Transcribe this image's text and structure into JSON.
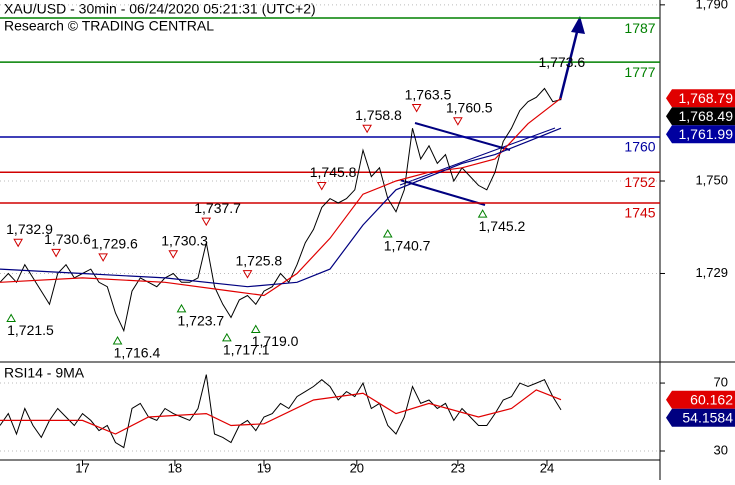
{
  "chart_data": [
    {
      "type": "line",
      "title": "XAU/USD - 30min - 06/24/2020 05:21:31 (UTC+2)",
      "subtitle": "Research © TRADING CENTRAL",
      "x": [
        0,
        2,
        4,
        6,
        8,
        10,
        12,
        14,
        16,
        18,
        20,
        22,
        24,
        26,
        28,
        30,
        32,
        34,
        36,
        38,
        40,
        42,
        44,
        46,
        48,
        50,
        52,
        54,
        56,
        58,
        60,
        62,
        64,
        66,
        68,
        70,
        72,
        74,
        76,
        78,
        80,
        82,
        84,
        86,
        88,
        90,
        92,
        94,
        96,
        98,
        100,
        102,
        104,
        106,
        108,
        110,
        112,
        114,
        116,
        118,
        120,
        122,
        124,
        126,
        128,
        130,
        132,
        134,
        136
      ],
      "xlim": [
        0,
        160
      ],
      "ylim": [
        1708.9,
        1791.1
      ],
      "yticks": [
        {
          "value": 1790,
          "label": "1,790"
        },
        {
          "value": 1750,
          "label": "1,750"
        },
        {
          "value": 1729,
          "label": "1,729"
        }
      ],
      "grid": true,
      "series": [
        {
          "color": "#000000",
          "values": [
            1727,
            1729,
            1727,
            1731,
            1728,
            1725,
            1722,
            1729,
            1731,
            1728,
            1729,
            1730,
            1727,
            1726,
            1720,
            1716,
            1725,
            1728,
            1727,
            1726,
            1728,
            1729,
            1727,
            1727,
            1728,
            1736,
            1726,
            1722,
            1719,
            1723,
            1724,
            1722,
            1725,
            1726,
            1729,
            1727,
            1731,
            1736,
            1739,
            1744,
            1746,
            1745,
            1746,
            1748,
            1757,
            1751,
            1753,
            1746,
            1743,
            1748,
            1762,
            1755,
            1758,
            1754,
            1756,
            1750,
            1753,
            1751,
            1749,
            1748,
            1752,
            1759,
            1762,
            1766,
            1768,
            1769,
            1771,
            1768,
            1768.5
          ]
        },
        {
          "color": "#e00000",
          "x": [
            0,
            20,
            40,
            56,
            64,
            72,
            80,
            88,
            96,
            104,
            112,
            120,
            128,
            136
          ],
          "values": [
            1727,
            1728,
            1727,
            1725,
            1724,
            1729,
            1737,
            1747,
            1750,
            1752,
            1753,
            1755,
            1763,
            1768.8
          ]
        },
        {
          "color": "#000080",
          "x": [
            0,
            20,
            40,
            60,
            72,
            80,
            88,
            96,
            104,
            112,
            120,
            128,
            136
          ],
          "values": [
            1730,
            1729,
            1728,
            1726,
            1727,
            1730,
            1740,
            1748,
            1751,
            1754,
            1756,
            1759,
            1762
          ]
        }
      ],
      "levels": [
        {
          "value": 1787,
          "color": "#008000"
        },
        {
          "value": 1777,
          "color": "#008000"
        },
        {
          "value": 1760,
          "color": "#0000a0"
        },
        {
          "value": 1752,
          "color": "#d00000"
        },
        {
          "value": 1745,
          "color": "#d00000"
        }
      ],
      "annotations": [
        {
          "x": 4.4,
          "value": 1732.9,
          "label": "1,732.9",
          "kind": "high"
        },
        {
          "x": 13.6,
          "value": 1730.6,
          "label": "1,730.6",
          "kind": "high"
        },
        {
          "x": 25,
          "value": 1729.6,
          "label": "1,729.6",
          "kind": "high"
        },
        {
          "x": 42,
          "value": 1730.3,
          "label": "1,730.3",
          "kind": "high"
        },
        {
          "x": 50,
          "value": 1737.7,
          "label": "1,737.7",
          "kind": "high"
        },
        {
          "x": 60,
          "value": 1725.8,
          "label": "1,725.8",
          "kind": "high"
        },
        {
          "x": 78,
          "value": 1745.8,
          "label": "1,745.8",
          "kind": "high"
        },
        {
          "x": 89,
          "value": 1758.8,
          "label": "1,758.8",
          "kind": "high"
        },
        {
          "x": 101,
          "value": 1763.5,
          "label": "1,763.5",
          "kind": "high"
        },
        {
          "x": 111,
          "value": 1760.5,
          "label": "1,760.5",
          "kind": "high"
        },
        {
          "x": 131.5,
          "value": 1773.6,
          "label": "1,773.6",
          "kind": "target"
        },
        {
          "x": 2.7,
          "value": 1721.5,
          "label": "1,721.5",
          "kind": "low"
        },
        {
          "x": 28.5,
          "value": 1716.4,
          "label": "1,716.4",
          "kind": "low"
        },
        {
          "x": 44,
          "value": 1723.7,
          "label": "1,723.7",
          "kind": "low"
        },
        {
          "x": 55,
          "value": 1717.1,
          "label": "1,717.1",
          "kind": "low"
        },
        {
          "x": 62,
          "value": 1719.0,
          "label": "1,719.0",
          "kind": "low"
        },
        {
          "x": 94,
          "value": 1740.7,
          "label": "1,740.7",
          "kind": "low"
        },
        {
          "x": 117,
          "value": 1745.2,
          "label": "1,745.2",
          "kind": "low"
        }
      ],
      "price_tags": [
        {
          "value": 1768.79,
          "label": "1,768.79",
          "color": "#e00000"
        },
        {
          "value": 1768.49,
          "label": "1,768.49",
          "color": "#000000"
        },
        {
          "value": 1761.99,
          "label": "1,761.99",
          "color": "#0000a0"
        }
      ]
    },
    {
      "type": "line",
      "title": "RSI14 - 9MA",
      "xlim": [
        0,
        160
      ],
      "xticks": [
        {
          "value": 20,
          "label": "17"
        },
        {
          "value": 42.4,
          "label": "18"
        },
        {
          "value": 64,
          "label": "19"
        },
        {
          "value": 86.5,
          "label": "20"
        },
        {
          "value": 111,
          "label": "23"
        },
        {
          "value": 132.6,
          "label": "24"
        }
      ],
      "ylim": [
        24.7,
        82.4
      ],
      "yticks": [
        70,
        30
      ],
      "series": [
        {
          "color": "#000000",
          "values": [
            45,
            52,
            40,
            55,
            45,
            38,
            48,
            55,
            50,
            45,
            52,
            48,
            42,
            45,
            35,
            32,
            55,
            58,
            50,
            48,
            55,
            52,
            50,
            48,
            55,
            75,
            40,
            38,
            35,
            45,
            48,
            42,
            50,
            52,
            58,
            55,
            62,
            65,
            68,
            72,
            68,
            60,
            65,
            62,
            70,
            55,
            58,
            45,
            40,
            50,
            68,
            58,
            60,
            55,
            58,
            48,
            55,
            50,
            45,
            45,
            52,
            60,
            62,
            70,
            68,
            70,
            72,
            62,
            54.2
          ]
        },
        {
          "color": "#e00000",
          "x": [
            0,
            20,
            28,
            36,
            50,
            56,
            64,
            76,
            88,
            96,
            104,
            116,
            124,
            130,
            136
          ],
          "values": [
            48,
            48,
            40,
            50,
            52,
            45,
            46,
            60,
            64,
            52,
            58,
            50,
            55,
            66,
            60.2
          ]
        }
      ],
      "price_tags": [
        {
          "value": 60.162,
          "label": "60.162",
          "color": "#e00000"
        },
        {
          "value": 54.1584,
          "label": "54.1584",
          "color": "#000080"
        }
      ]
    }
  ]
}
